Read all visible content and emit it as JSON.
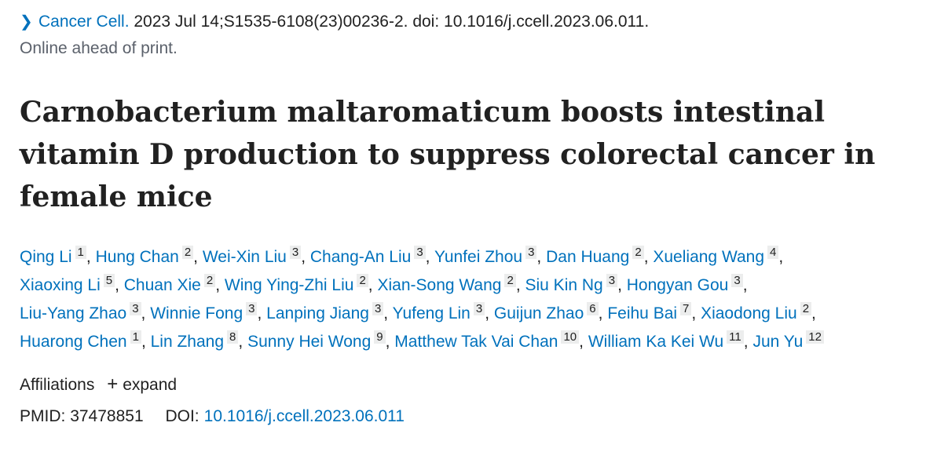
{
  "citation": {
    "journal": "Cancer Cell.",
    "details": " 2023 Jul 14;S1535-6108(23)00236-2. doi: 10.1016/j.ccell.2023.06.011.",
    "status": "Online ahead of print.",
    "chevron_glyph": "❯"
  },
  "article": {
    "title": "Carnobacterium maltaromaticum boosts intestinal vitamin D production to suppress colorectal cancer in female mice"
  },
  "authors": [
    {
      "name": "Qing Li",
      "aff": "1"
    },
    {
      "name": "Hung Chan",
      "aff": "2"
    },
    {
      "name": "Wei-Xin Liu",
      "aff": "3"
    },
    {
      "name": "Chang-An Liu",
      "aff": "3"
    },
    {
      "name": "Yunfei Zhou",
      "aff": "3"
    },
    {
      "name": "Dan Huang",
      "aff": "2"
    },
    {
      "name": "Xueliang Wang",
      "aff": "4"
    },
    {
      "name": "Xiaoxing Li",
      "aff": "5"
    },
    {
      "name": "Chuan Xie",
      "aff": "2"
    },
    {
      "name": "Wing Ying-Zhi Liu",
      "aff": "2"
    },
    {
      "name": "Xian-Song Wang",
      "aff": "2"
    },
    {
      "name": "Siu Kin Ng",
      "aff": "3"
    },
    {
      "name": "Hongyan Gou",
      "aff": "3"
    },
    {
      "name": "Liu-Yang Zhao",
      "aff": "3"
    },
    {
      "name": "Winnie Fong",
      "aff": "3"
    },
    {
      "name": "Lanping Jiang",
      "aff": "3"
    },
    {
      "name": "Yufeng Lin",
      "aff": "3"
    },
    {
      "name": "Guijun Zhao",
      "aff": "6"
    },
    {
      "name": "Feihu Bai",
      "aff": "7"
    },
    {
      "name": "Xiaodong Liu",
      "aff": "2"
    },
    {
      "name": "Huarong Chen",
      "aff": "1"
    },
    {
      "name": "Lin Zhang",
      "aff": "8"
    },
    {
      "name": "Sunny Hei Wong",
      "aff": "9"
    },
    {
      "name": "Matthew Tak Vai Chan",
      "aff": "10"
    },
    {
      "name": "William Ka Kei Wu",
      "aff": "11"
    },
    {
      "name": "Jun Yu",
      "aff": "12"
    }
  ],
  "affiliations": {
    "label": "Affiliations",
    "expand_label": "expand",
    "expand_glyph": "+"
  },
  "identifiers": {
    "pmid_label": "PMID:",
    "pmid": "37478851",
    "doi_label": "DOI:",
    "doi": "10.1016/j.ccell.2023.06.011"
  },
  "colors": {
    "link": "#0071bc",
    "text": "#212121",
    "muted": "#5b616b",
    "badge_bg": "#eceded"
  }
}
